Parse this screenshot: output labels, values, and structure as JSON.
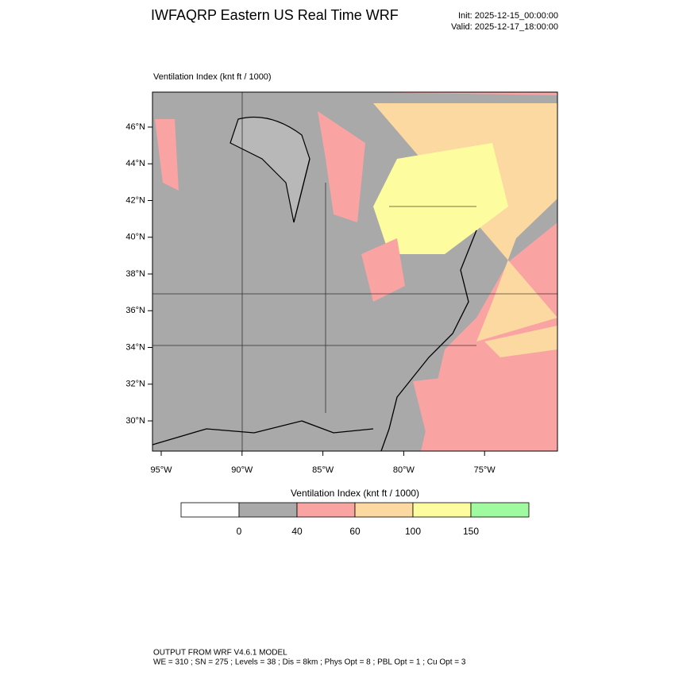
{
  "header": {
    "title": "IWFAQRP Eastern US Real Time WRF",
    "init": "Init: 2025-12-15_00:00:00",
    "valid": "Valid: 2025-12-17_18:00:00"
  },
  "map": {
    "label": "Ventilation Index   (knt ft / 1000)",
    "lat_ticks": [
      "46°N",
      "44°N",
      "42°N",
      "40°N",
      "38°N",
      "36°N",
      "34°N",
      "32°N",
      "30°N"
    ],
    "lon_ticks": [
      "95°W",
      "90°W",
      "85°W",
      "80°W",
      "75°W"
    ]
  },
  "colorbar": {
    "title": "Ventilation Index  (knt ft / 1000)",
    "colors": [
      "#ffffff",
      "#a9a9a9",
      "#f9a3a3",
      "#fcd9a0",
      "#fdfd9f",
      "#a0fba0"
    ],
    "labels": [
      "0",
      "40",
      "60",
      "100",
      "150"
    ]
  },
  "footer": {
    "line1": "OUTPUT FROM WRF V4.6.1 MODEL",
    "line2": "WE = 310 ; SN = 275 ; Levels = 38 ; Dis = 8km ; Phys Opt = 8 ; PBL Opt = 1 ; Cu Opt = 3"
  }
}
